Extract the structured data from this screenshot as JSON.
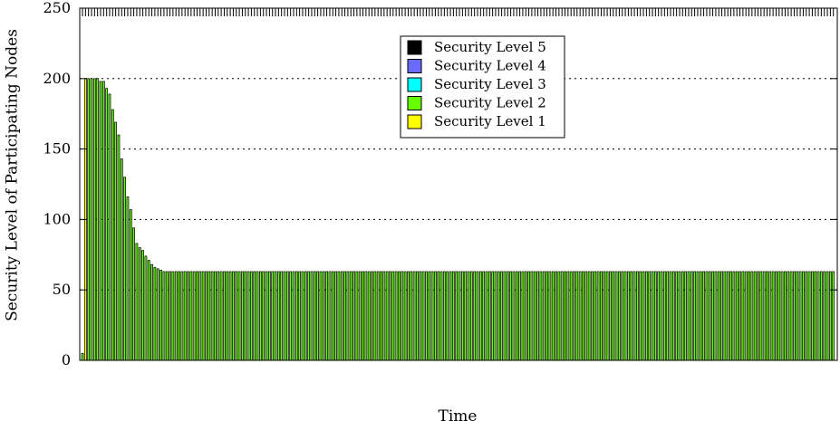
{
  "chart_data": {
    "type": "bar",
    "xlabel": "Time",
    "ylabel": "Security Level of Participating Nodes",
    "ylim": [
      0,
      250
    ],
    "yticks": [
      0,
      50,
      100,
      150,
      200,
      250
    ],
    "grid": "dashed horizontal at y ticks",
    "legend_position": "top-center",
    "legend": [
      {
        "name": "Security Level 5",
        "color": "#000000"
      },
      {
        "name": "Security Level 4",
        "color": "#6a6aff"
      },
      {
        "name": "Security Level 3",
        "color": "#00ffff"
      },
      {
        "name": "Security Level 2",
        "color": "#66ff00"
      },
      {
        "name": "Security Level 1",
        "color": "#ffff00"
      }
    ],
    "bar_count": 250,
    "series": [
      {
        "name": "Security Level 2",
        "color": "#66ff00",
        "stroke": "#000000",
        "leading_values": [
          5,
          200,
          200,
          200,
          200,
          200,
          198,
          198,
          193,
          189,
          178,
          169,
          160,
          143,
          130,
          116,
          107,
          94,
          83,
          80,
          78,
          74,
          71,
          68,
          66,
          65,
          64,
          63
        ],
        "steady_value": 63
      }
    ],
    "highlight": {
      "color": "#ffff00",
      "value": 200,
      "bar_index": 1
    }
  }
}
